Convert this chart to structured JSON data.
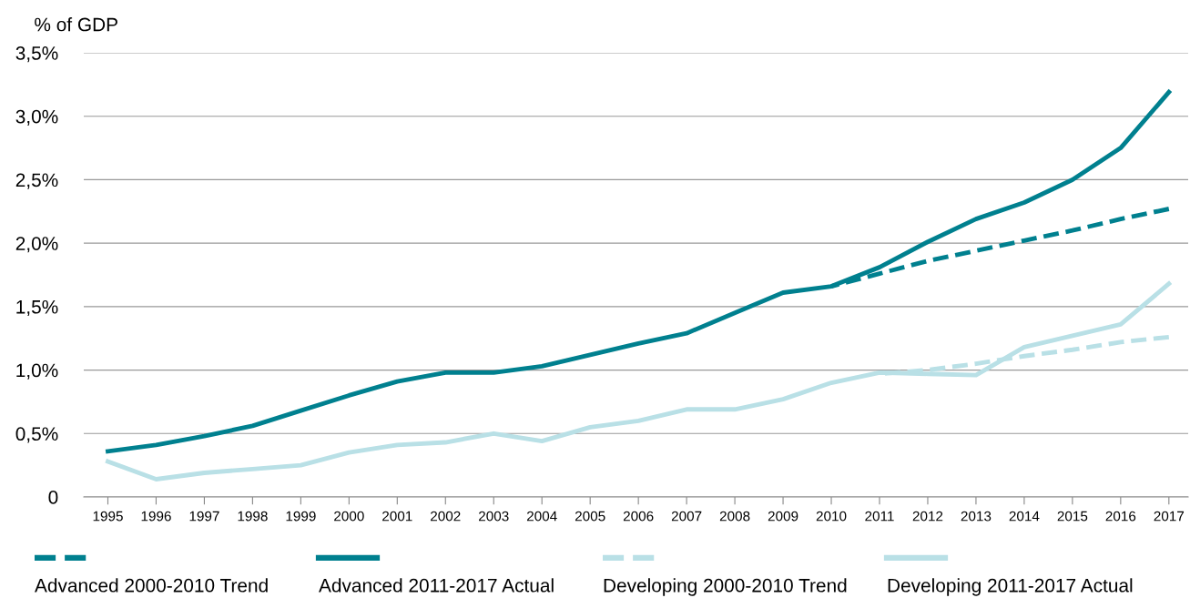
{
  "chart_data": {
    "type": "line",
    "ylabel": "% of GDP",
    "x": [
      1995,
      1996,
      1997,
      1998,
      1999,
      2000,
      2001,
      2002,
      2003,
      2004,
      2005,
      2006,
      2007,
      2008,
      2009,
      2010,
      2011,
      2012,
      2013,
      2014,
      2015,
      2016,
      2017
    ],
    "xlim": [
      1994.5,
      2017.4
    ],
    "xticks": [
      1995,
      1996,
      1997,
      1998,
      1999,
      2000,
      2001,
      2002,
      2003,
      2004,
      2005,
      2006,
      2007,
      2008,
      2009,
      2010,
      2011,
      2012,
      2013,
      2014,
      2015,
      2016,
      2017
    ],
    "ylim": [
      0,
      3.5
    ],
    "yticks": [
      {
        "value": 0,
        "label": "0"
      },
      {
        "value": 0.5,
        "label": "0,5%"
      },
      {
        "value": 1.0,
        "label": "1,0%"
      },
      {
        "value": 1.5,
        "label": "1,5%"
      },
      {
        "value": 2.0,
        "label": "2,0%"
      },
      {
        "value": 2.5,
        "label": "2,5%"
      },
      {
        "value": 3.0,
        "label": "3,0%"
      },
      {
        "value": 3.5,
        "label": "3,5%"
      }
    ],
    "grid": "y",
    "legend": "bottom",
    "series": [
      {
        "name": "Advanced 2000-2010 Trend",
        "color": "#00808f",
        "line_style": "dashed",
        "x": [
          2010,
          2011,
          2012,
          2013,
          2014,
          2015,
          2016,
          2017
        ],
        "values": [
          1.66,
          1.76,
          1.86,
          1.94,
          2.02,
          2.1,
          2.19,
          2.27
        ]
      },
      {
        "name": "Advanced 2011-2017 Actual",
        "color": "#00808f",
        "line_style": "solid",
        "values": [
          0.36,
          0.41,
          0.48,
          0.56,
          0.68,
          0.8,
          0.91,
          0.98,
          0.98,
          1.03,
          1.12,
          1.21,
          1.29,
          1.45,
          1.61,
          1.66,
          1.81,
          2.01,
          2.19,
          2.32,
          2.5,
          2.75,
          3.19
        ]
      },
      {
        "name": "Developing 2000-2010 Trend",
        "color": "#b9e0e6",
        "line_style": "dashed",
        "x": [
          2011,
          2012,
          2013,
          2014,
          2015,
          2016,
          2017
        ],
        "values": [
          0.97,
          1.0,
          1.05,
          1.11,
          1.16,
          1.22,
          1.26
        ]
      },
      {
        "name": "Developing 2011-2017 Actual",
        "color": "#b9e0e6",
        "line_style": "solid",
        "values": [
          0.28,
          0.14,
          0.19,
          0.22,
          0.25,
          0.35,
          0.41,
          0.43,
          0.5,
          0.44,
          0.55,
          0.6,
          0.69,
          0.69,
          0.77,
          0.9,
          0.98,
          0.97,
          0.96,
          1.18,
          1.27,
          1.36,
          1.68
        ]
      }
    ]
  }
}
